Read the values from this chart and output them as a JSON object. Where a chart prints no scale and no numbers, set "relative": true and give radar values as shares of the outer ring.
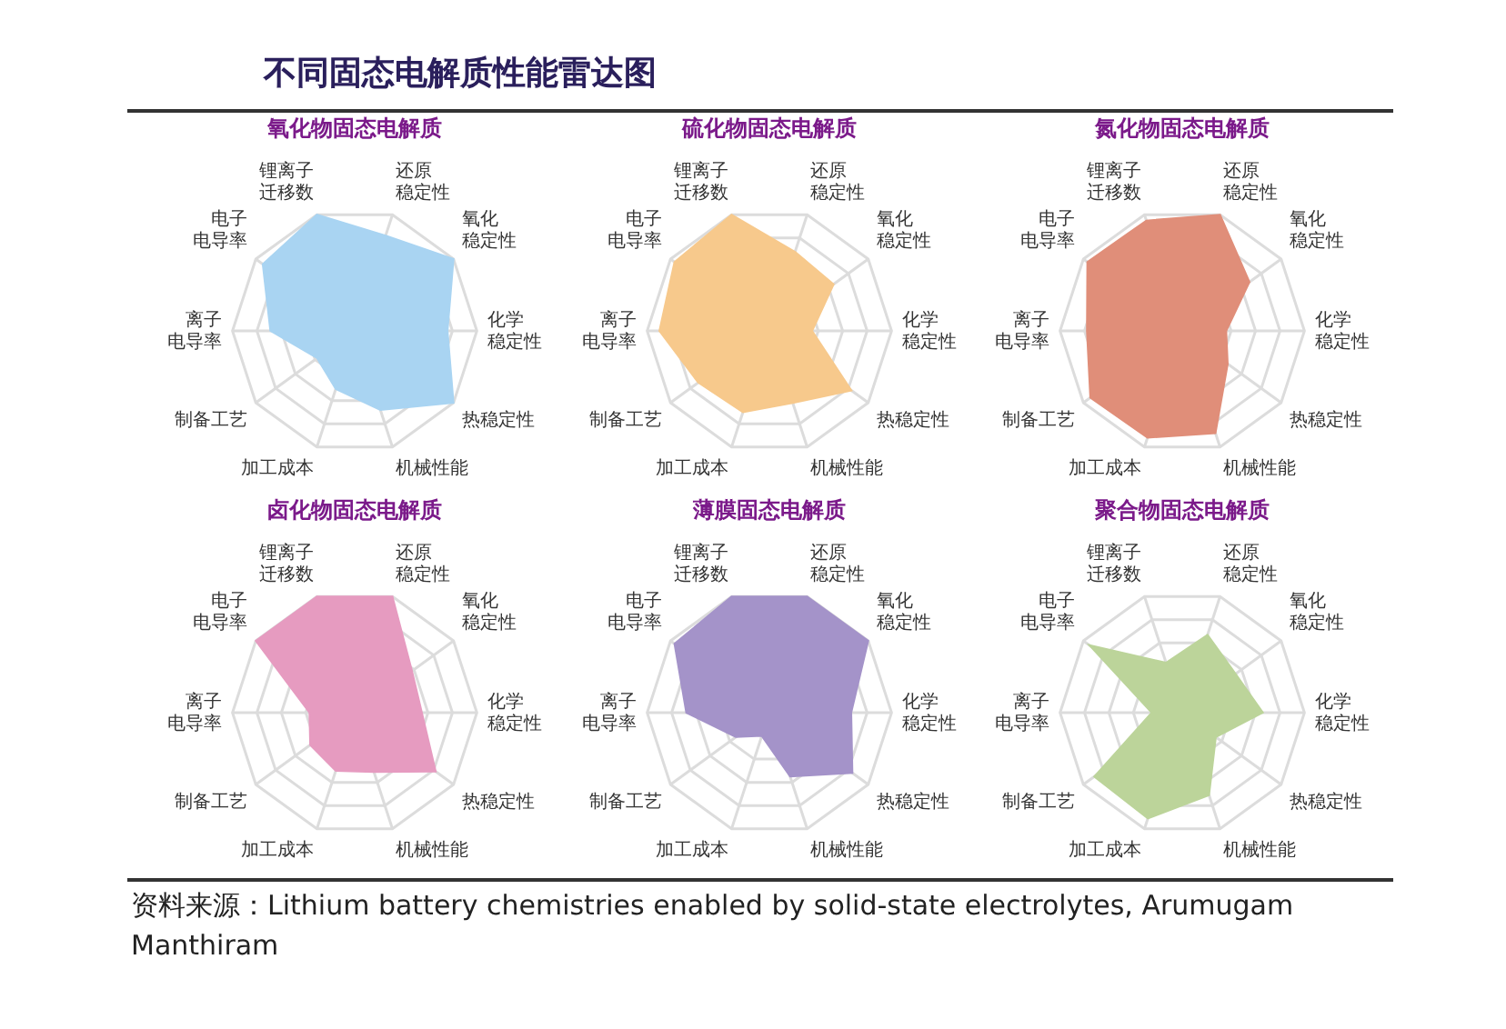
{
  "chart_data": [
    {
      "type": "other",
      "title": "不同固态电解质性能雷达图"
    },
    {
      "type": "radar",
      "title": "氧化物固态电解质",
      "relative": true,
      "categories": [
        "还原稳定性",
        "氧化稳定性",
        "化学稳定性",
        "热稳定性",
        "机械性能",
        "加工成本",
        "制备工艺",
        "离子电导率",
        "电子电导率",
        "锂离子迁移数"
      ],
      "series": [
        {
          "color": "#a9d4f2",
          "values": [
            0.82,
            1.0,
            0.76,
            1.0,
            0.68,
            0.5,
            0.38,
            0.69,
            0.93,
            1.0
          ]
        }
      ]
    },
    {
      "type": "radar",
      "title": "硫化物固态电解质",
      "relative": true,
      "categories": [
        "还原稳定性",
        "氧化稳定性",
        "化学稳定性",
        "热稳定性",
        "机械性能",
        "加工成本",
        "制备工艺",
        "离子电导率",
        "电子电导率",
        "锂离子迁移数"
      ],
      "series": [
        {
          "color": "#f7c98c",
          "values": [
            0.68,
            0.65,
            0.35,
            0.83,
            0.62,
            0.7,
            0.72,
            0.9,
            0.96,
            1.0
          ]
        }
      ]
    },
    {
      "type": "radar",
      "title": "氮化物固态电解质",
      "relative": true,
      "categories": [
        "还原稳定性",
        "氧化稳定性",
        "化学稳定性",
        "热稳定性",
        "机械性能",
        "加工成本",
        "制备工艺",
        "离子电导率",
        "电子电导率",
        "锂离子迁移数"
      ],
      "series": [
        {
          "color": "#e08e79",
          "values": [
            1.0,
            0.68,
            0.36,
            0.46,
            0.88,
            0.92,
            0.93,
            0.78,
            0.96,
            0.95
          ]
        }
      ]
    },
    {
      "type": "radar",
      "title": "卤化物固态电解质",
      "relative": true,
      "categories": [
        "还原稳定性",
        "氧化稳定性",
        "化学稳定性",
        "热稳定性",
        "机械性能",
        "加工成本",
        "制备工艺",
        "离子电导率",
        "电子电导率",
        "锂离子迁移数"
      ],
      "series": [
        {
          "color": "#e69bc0",
          "values": [
            1.0,
            0.58,
            0.55,
            0.82,
            0.51,
            0.5,
            0.45,
            0.37,
            1.0,
            1.0
          ]
        }
      ]
    },
    {
      "type": "radar",
      "title": "薄膜固态电解质",
      "relative": true,
      "categories": [
        "还原稳定性",
        "氧化稳定性",
        "化学稳定性",
        "热稳定性",
        "机械性能",
        "加工成本",
        "制备工艺",
        "离子电导率",
        "电子电导率",
        "锂离子迁移数"
      ],
      "series": [
        {
          "color": "#a493c9",
          "values": [
            1.0,
            1.0,
            0.67,
            0.84,
            0.55,
            0.2,
            0.34,
            0.68,
            0.96,
            1.0
          ]
        }
      ]
    },
    {
      "type": "radar",
      "title": "聚合物固态电解质",
      "relative": true,
      "categories": [
        "还原稳定性",
        "氧化稳定性",
        "化学稳定性",
        "热稳定性",
        "机械性能",
        "加工成本",
        "制备工艺",
        "离子电导率",
        "电子电导率",
        "锂离子迁移数"
      ],
      "series": [
        {
          "color": "#bcd49a",
          "values": [
            0.67,
            0.54,
            0.66,
            0.34,
            0.71,
            0.91,
            0.89,
            0.25,
            0.94,
            0.43
          ]
        }
      ]
    },
    {
      "type": "other",
      "annotations": [
        "资料来源：Lithium battery chemistries enabled by solid-state electrolytes, Arumugam Manthiram"
      ]
    }
  ]
}
